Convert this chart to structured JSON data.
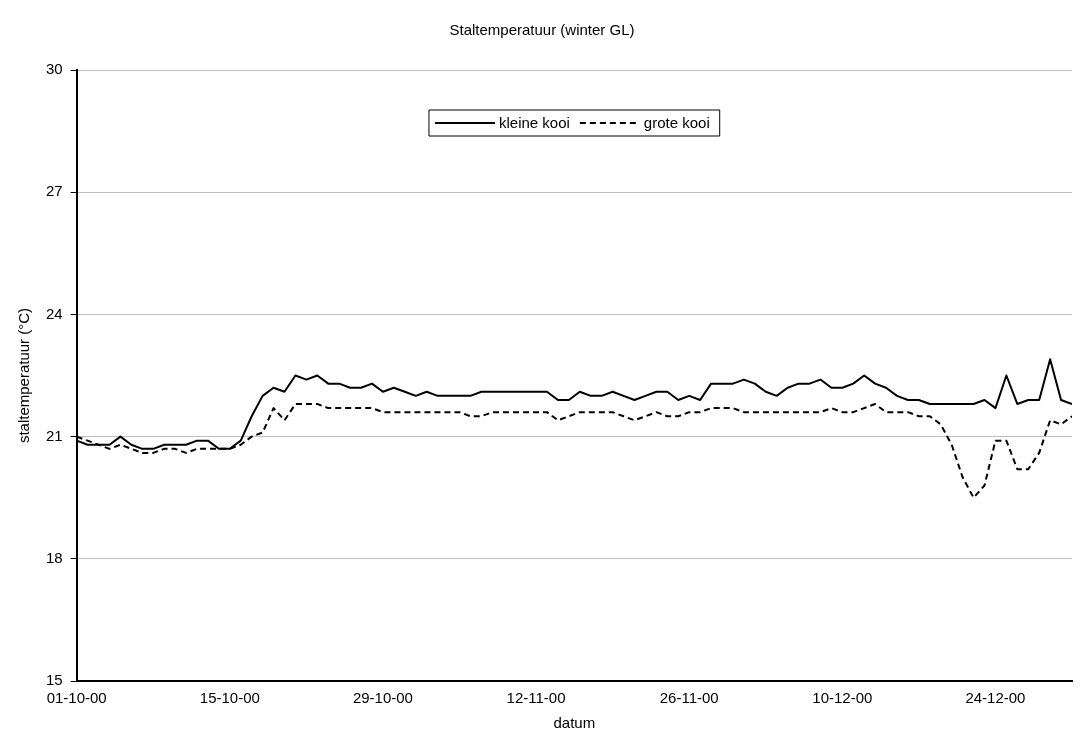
{
  "chart_data": {
    "type": "line",
    "title": "Staltemperatuur (winter GL)",
    "xlabel": "datum",
    "ylabel": "staltemperatuur (°C)",
    "x": [
      "2000-10-01",
      "2000-10-02",
      "2000-10-03",
      "2000-10-04",
      "2000-10-05",
      "2000-10-06",
      "2000-10-07",
      "2000-10-08",
      "2000-10-09",
      "2000-10-10",
      "2000-10-11",
      "2000-10-12",
      "2000-10-13",
      "2000-10-14",
      "2000-10-15",
      "2000-10-16",
      "2000-10-17",
      "2000-10-18",
      "2000-10-19",
      "2000-10-20",
      "2000-10-21",
      "2000-10-22",
      "2000-10-23",
      "2000-10-24",
      "2000-10-25",
      "2000-10-26",
      "2000-10-27",
      "2000-10-28",
      "2000-10-29",
      "2000-10-30",
      "2000-10-31",
      "2000-11-01",
      "2000-11-02",
      "2000-11-03",
      "2000-11-04",
      "2000-11-05",
      "2000-11-06",
      "2000-11-07",
      "2000-11-08",
      "2000-11-09",
      "2000-11-10",
      "2000-11-11",
      "2000-11-12",
      "2000-11-13",
      "2000-11-14",
      "2000-11-15",
      "2000-11-16",
      "2000-11-17",
      "2000-11-18",
      "2000-11-19",
      "2000-11-20",
      "2000-11-21",
      "2000-11-22",
      "2000-11-23",
      "2000-11-24",
      "2000-11-25",
      "2000-11-26",
      "2000-11-27",
      "2000-11-28",
      "2000-11-29",
      "2000-11-30",
      "2000-12-01",
      "2000-12-02",
      "2000-12-03",
      "2000-12-04",
      "2000-12-05",
      "2000-12-06",
      "2000-12-07",
      "2000-12-08",
      "2000-12-09",
      "2000-12-10",
      "2000-12-11",
      "2000-12-12",
      "2000-12-13",
      "2000-12-14",
      "2000-12-15",
      "2000-12-16",
      "2000-12-17",
      "2000-12-18",
      "2000-12-19",
      "2000-12-20",
      "2000-12-21",
      "2000-12-22",
      "2000-12-23",
      "2000-12-24",
      "2000-12-25",
      "2000-12-26",
      "2000-12-27",
      "2000-12-28",
      "2000-12-29",
      "2000-12-30",
      "2000-12-31"
    ],
    "series": [
      {
        "name": "kleine kooi",
        "color": "#000000",
        "line_style": "solid",
        "values": [
          20.9,
          20.8,
          20.8,
          20.8,
          21.0,
          20.8,
          20.7,
          20.7,
          20.8,
          20.8,
          20.8,
          20.9,
          20.9,
          20.7,
          20.7,
          20.9,
          21.5,
          22.0,
          22.2,
          22.1,
          22.5,
          22.4,
          22.5,
          22.3,
          22.3,
          22.2,
          22.2,
          22.3,
          22.1,
          22.2,
          22.1,
          22.0,
          22.1,
          22.0,
          22.0,
          22.0,
          22.0,
          22.1,
          22.1,
          22.1,
          22.1,
          22.1,
          22.1,
          22.1,
          21.9,
          21.9,
          22.1,
          22.0,
          22.0,
          22.1,
          22.0,
          21.9,
          22.0,
          22.1,
          22.1,
          21.9,
          22.0,
          21.9,
          22.3,
          22.3,
          22.3,
          22.4,
          22.3,
          22.1,
          22.0,
          22.2,
          22.3,
          22.3,
          22.4,
          22.2,
          22.2,
          22.3,
          22.5,
          22.3,
          22.2,
          22.0,
          21.9,
          21.9,
          21.8,
          21.8,
          21.8,
          21.8,
          21.8,
          21.9,
          21.7,
          22.5,
          21.8,
          21.9,
          21.9,
          22.9,
          21.9,
          21.8
        ]
      },
      {
        "name": "grote kooi",
        "color": "#000000",
        "line_style": "dashed",
        "values": [
          21.0,
          20.9,
          20.8,
          20.7,
          20.8,
          20.7,
          20.6,
          20.6,
          20.7,
          20.7,
          20.6,
          20.7,
          20.7,
          20.7,
          20.7,
          20.8,
          21.0,
          21.1,
          21.7,
          21.4,
          21.8,
          21.8,
          21.8,
          21.7,
          21.7,
          21.7,
          21.7,
          21.7,
          21.6,
          21.6,
          21.6,
          21.6,
          21.6,
          21.6,
          21.6,
          21.6,
          21.5,
          21.5,
          21.6,
          21.6,
          21.6,
          21.6,
          21.6,
          21.6,
          21.4,
          21.5,
          21.6,
          21.6,
          21.6,
          21.6,
          21.5,
          21.4,
          21.5,
          21.6,
          21.5,
          21.5,
          21.6,
          21.6,
          21.7,
          21.7,
          21.7,
          21.6,
          21.6,
          21.6,
          21.6,
          21.6,
          21.6,
          21.6,
          21.6,
          21.7,
          21.6,
          21.6,
          21.7,
          21.8,
          21.6,
          21.6,
          21.6,
          21.5,
          21.5,
          21.3,
          20.8,
          20.0,
          19.5,
          19.8,
          20.9,
          20.9,
          20.2,
          20.2,
          20.6,
          21.4,
          21.3,
          21.5
        ]
      }
    ],
    "xlim": [
      "2000-10-01",
      "2000-12-31"
    ],
    "xticks": [
      {
        "value": "2000-10-01",
        "label": "01-10-00"
      },
      {
        "value": "2000-10-15",
        "label": "15-10-00"
      },
      {
        "value": "2000-10-29",
        "label": "29-10-00"
      },
      {
        "value": "2000-11-12",
        "label": "12-11-00"
      },
      {
        "value": "2000-11-26",
        "label": "26-11-00"
      },
      {
        "value": "2000-12-10",
        "label": "10-12-00"
      },
      {
        "value": "2000-12-24",
        "label": "24-12-00"
      }
    ],
    "ylim": [
      15,
      30
    ],
    "yticks": [
      15,
      18,
      21,
      24,
      27,
      30
    ],
    "grid": "y",
    "legend": "top",
    "marker": "none"
  }
}
